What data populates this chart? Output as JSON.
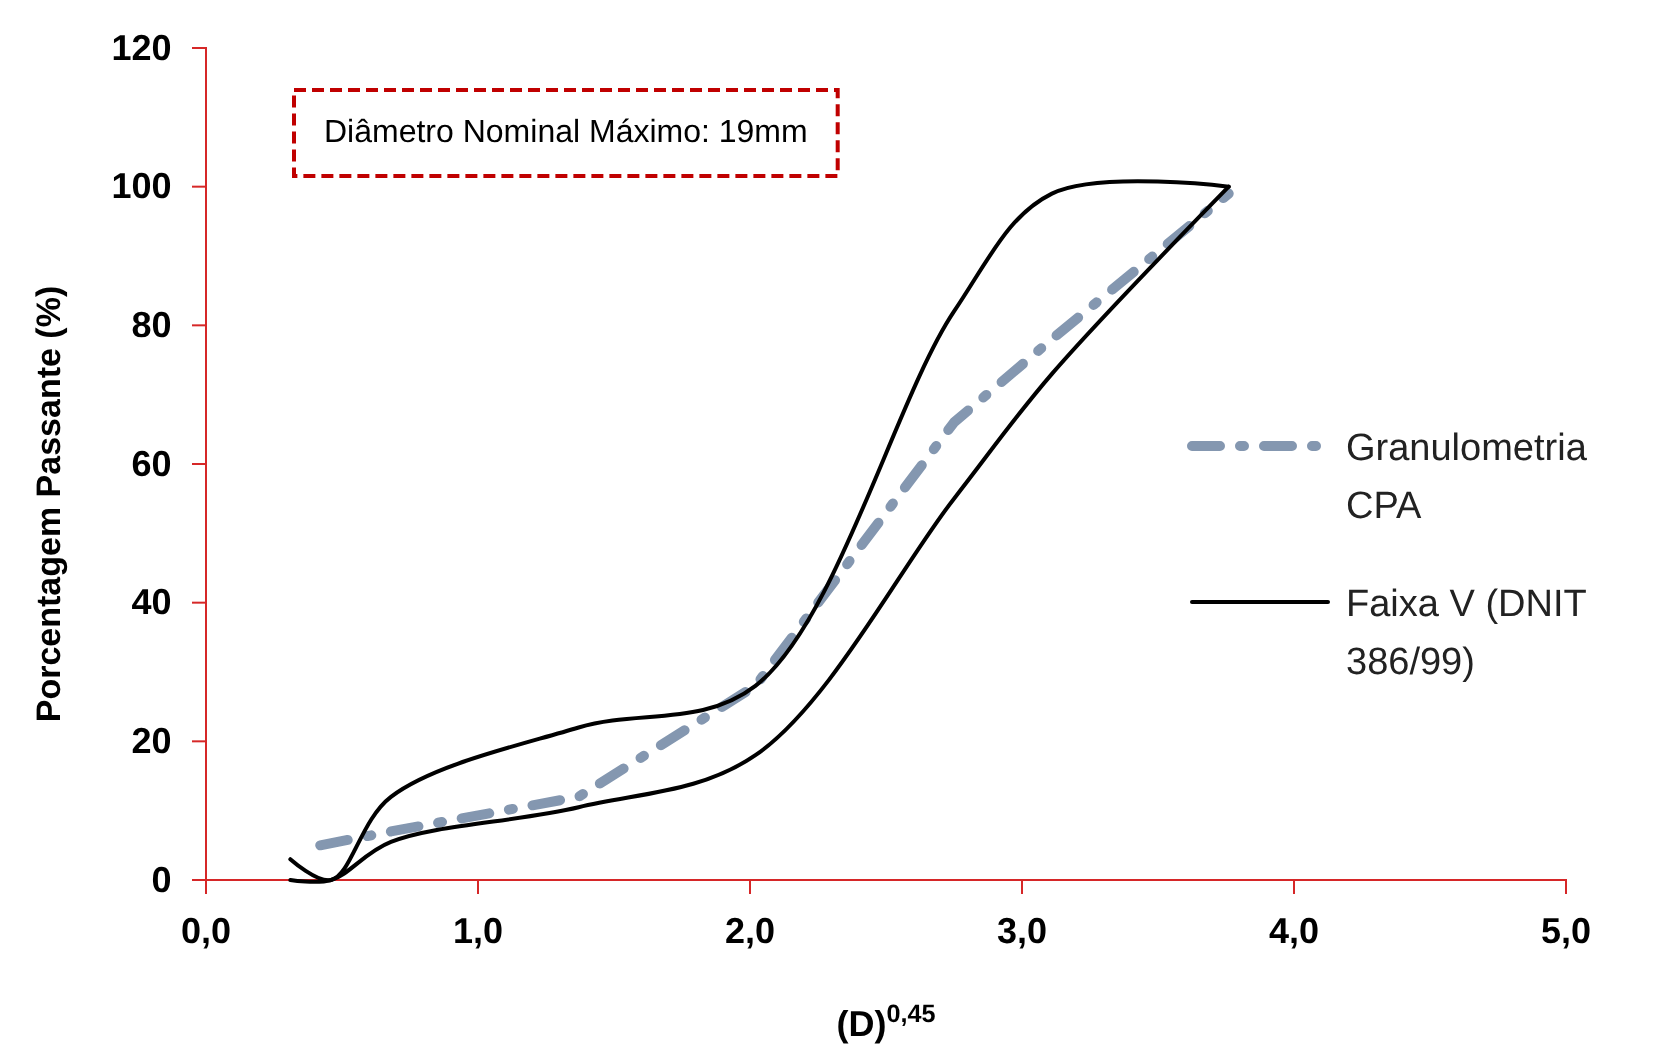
{
  "chart_data": {
    "type": "line",
    "xlabel": "(D)$^{0,45}$",
    "ylabel": "Porcentagem Passante (%)",
    "annotations": [
      "Diâmetro Nominal Máximo: 19mm"
    ],
    "xlim": [
      0,
      5
    ],
    "xticks": [
      {
        "value": 0,
        "label": "0,0"
      },
      {
        "value": 1,
        "label": "1,0"
      },
      {
        "value": 2,
        "label": "2,0"
      },
      {
        "value": 3,
        "label": "3,0"
      },
      {
        "value": 4,
        "label": "4,0"
      },
      {
        "value": 5,
        "label": "5,0"
      }
    ],
    "ylim": [
      0,
      120
    ],
    "yticks": [
      0,
      20,
      40,
      60,
      80,
      100,
      120
    ],
    "grid": false,
    "legend": "right",
    "series": [
      {
        "name": "Granulometria CPA",
        "color": "#8497b0",
        "line_style": "dashdot",
        "x": [
          0.42,
          0.68,
          1.37,
          2.02,
          2.75,
          3.11,
          3.76
        ],
        "values": [
          5,
          7,
          12,
          28,
          66,
          78,
          99
        ]
      },
      {
        "name": "Faixa V (DNIT 386/99)",
        "color": "#000000",
        "line_style": "solid",
        "x": [
          0.31,
          0.46,
          0.68,
          1.37,
          2.02,
          2.75,
          3.11,
          3.76
        ],
        "values": [
          3,
          0,
          12,
          22,
          28,
          82,
          99,
          100
        ]
      },
      {
        "color": "#000000",
        "line_style": "solid",
        "x": [
          0.31,
          0.46,
          0.68,
          1.37,
          2.02,
          2.75,
          3.11,
          3.76
        ],
        "values": [
          0,
          0,
          5.5,
          10.5,
          18,
          55,
          73,
          100
        ]
      }
    ]
  }
}
